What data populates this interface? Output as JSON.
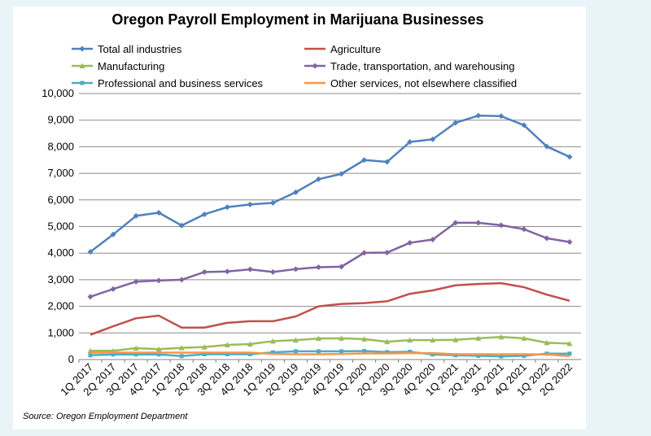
{
  "chart_data": {
    "type": "line",
    "title": "Oregon Payroll Employment in Marijuana Businesses",
    "source": "Source: Oregon Employment Department",
    "ylim": [
      0,
      10000
    ],
    "yticks": [
      "0",
      "1,000",
      "2,000",
      "3,000",
      "4,000",
      "5,000",
      "6,000",
      "7,000",
      "8,000",
      "9,000",
      "10,000"
    ],
    "grid": true,
    "legend_position": "top",
    "categories": [
      "1Q 2017",
      "2Q 2017",
      "3Q 2017",
      "4Q 2017",
      "1Q 2018",
      "2Q 2018",
      "3Q 2018",
      "4Q 2018",
      "1Q 2019",
      "2Q 2019",
      "3Q 2019",
      "4Q 2019",
      "1Q 2020",
      "2Q 2020",
      "3Q 2020",
      "4Q 2020",
      "1Q 2021",
      "2Q 2021",
      "3Q 2021",
      "4Q 2021",
      "1Q 2022",
      "2Q 2022"
    ],
    "series": [
      {
        "name": "Total all industries",
        "color": "#4f81bd",
        "marker": "diamond",
        "values": [
          4050,
          4700,
          5400,
          5520,
          5040,
          5460,
          5730,
          5830,
          5890,
          6290,
          6780,
          6980,
          7500,
          7430,
          8180,
          8280,
          8900,
          9170,
          9150,
          8810,
          8010,
          7620
        ]
      },
      {
        "name": "Agriculture",
        "color": "#c0504d",
        "marker": "none",
        "values": [
          930,
          1250,
          1550,
          1650,
          1200,
          1200,
          1380,
          1440,
          1440,
          1620,
          2000,
          2090,
          2120,
          2190,
          2470,
          2600,
          2790,
          2840,
          2870,
          2720,
          2440,
          2210
        ]
      },
      {
        "name": "Manufacturing",
        "color": "#9bbb59",
        "marker": "triangle",
        "values": [
          330,
          330,
          430,
          390,
          440,
          470,
          550,
          580,
          690,
          730,
          790,
          800,
          770,
          670,
          730,
          730,
          740,
          800,
          850,
          800,
          630,
          600
        ]
      },
      {
        "name": "Trade, transportation, and warehousing",
        "color": "#8064a2",
        "marker": "diamond",
        "values": [
          2360,
          2650,
          2930,
          2970,
          3000,
          3290,
          3310,
          3390,
          3290,
          3400,
          3470,
          3490,
          4010,
          4020,
          4390,
          4510,
          5140,
          5140,
          5050,
          4900,
          4560,
          4420
        ]
      },
      {
        "name": "Professional and business services",
        "color": "#4bacc6",
        "marker": "square",
        "values": [
          160,
          190,
          190,
          190,
          130,
          200,
          200,
          200,
          270,
          310,
          310,
          310,
          320,
          280,
          290,
          190,
          160,
          140,
          120,
          140,
          220,
          220
        ]
      },
      {
        "name": "Other services, not elsewhere classified",
        "color": "#f79646",
        "marker": "none",
        "values": [
          260,
          260,
          260,
          260,
          260,
          260,
          260,
          260,
          210,
          200,
          200,
          210,
          230,
          230,
          240,
          240,
          200,
          200,
          200,
          200,
          190,
          130
        ]
      }
    ]
  }
}
